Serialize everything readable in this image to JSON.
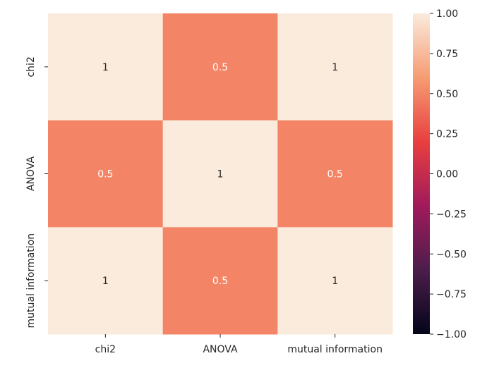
{
  "chart_data": {
    "type": "heatmap",
    "title": "",
    "xlabel": "",
    "ylabel": "",
    "x_categories": [
      "chi2",
      "ANOVA",
      "mutual information"
    ],
    "y_categories": [
      "chi2",
      "ANOVA",
      "mutual information"
    ],
    "values": [
      [
        1,
        0.5,
        1
      ],
      [
        0.5,
        1,
        0.5
      ],
      [
        1,
        0.5,
        1
      ]
    ],
    "cell_labels": [
      [
        "1",
        "0.5",
        "1"
      ],
      [
        "0.5",
        "1",
        "0.5"
      ],
      [
        "1",
        "0.5",
        "1"
      ]
    ],
    "colorbar": {
      "vmin": -1.0,
      "vmax": 1.0,
      "ticks": [
        1.0,
        0.75,
        0.5,
        0.25,
        0.0,
        -0.25,
        -0.5,
        -0.75,
        -1.0
      ],
      "tick_labels": [
        "1.00",
        "0.75",
        "0.50",
        "0.25",
        "0.00",
        "−0.25",
        "−0.50",
        "−0.75",
        "−1.00"
      ],
      "colormap": "rocket",
      "colormap_stops": [
        "#03051a",
        "#4c1d4b",
        "#a11a5b",
        "#e83f3f",
        "#f69c73",
        "#faebdd"
      ]
    },
    "grid": false,
    "legend": "colorbar-right"
  }
}
